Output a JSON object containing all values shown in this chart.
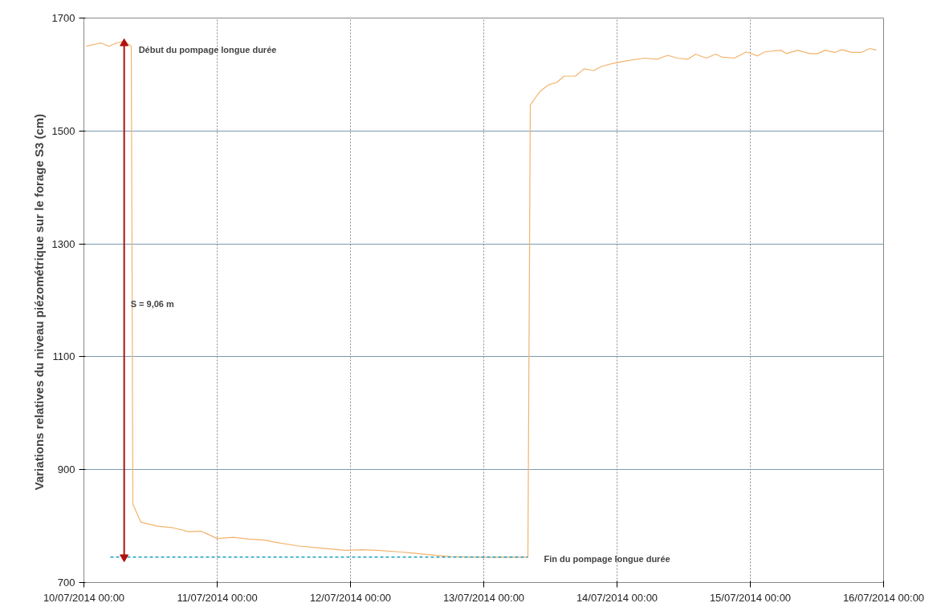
{
  "chart_data": {
    "type": "line",
    "ylabel": "Variations relatives du niveau piézométrique sur le forage  S3 (cm)",
    "xlim": [
      "2014-07-10",
      "2014-07-16"
    ],
    "xticks": [
      {
        "value": "2014-07-10",
        "label": "10/07/2014 00:00"
      },
      {
        "value": "2014-07-11",
        "label": "11/07/2014 00:00"
      },
      {
        "value": "2014-07-12",
        "label": "12/07/2014 00:00"
      },
      {
        "value": "2014-07-13",
        "label": "13/07/2014 00:00"
      },
      {
        "value": "2014-07-14",
        "label": "14/07/2014 00:00"
      },
      {
        "value": "2014-07-15",
        "label": "15/07/2014 00:00"
      },
      {
        "value": "2014-07-16",
        "label": "16/07/2014 00:00"
      }
    ],
    "ylim": [
      700,
      1700
    ],
    "yticks": [
      700,
      900,
      1100,
      1300,
      1500,
      1700
    ],
    "grid": true,
    "series": [
      {
        "color": "#f2b36b",
        "line_style": "solid",
        "x": [
          "2014-07-10T00:26",
          "2014-07-10T03:02",
          "2014-07-10T04:29",
          "2014-07-10T05:56",
          "2014-07-10T07:22",
          "2014-07-10T08:06",
          "2014-07-10T08:32",
          "2014-07-10T08:49",
          "2014-07-10T10:16",
          "2014-07-10T13:09",
          "2014-07-10T16:03",
          "2014-07-10T18:56",
          "2014-07-10T21:07",
          "2014-07-11T00:00",
          "2014-07-11T02:53",
          "2014-07-11T05:47",
          "2014-07-11T08:41",
          "2014-07-11T10:07",
          "2014-07-11T14:28",
          "2014-07-11T18:48",
          "2014-07-11T23:08",
          "2014-07-12T02:01",
          "2014-07-12T04:55",
          "2014-07-12T09:15",
          "2014-07-12T13:35",
          "2014-07-12T17:56",
          "2014-07-12T23:43",
          "2014-07-13T05:29",
          "2014-07-13T07:57",
          "2014-07-13T08:23",
          "2014-07-13T10:07",
          "2014-07-13T11:43",
          "2014-07-13T13:09",
          "2014-07-13T14:28",
          "2014-07-13T16:29",
          "2014-07-13T18:04",
          "2014-07-13T19:49",
          "2014-07-13T21:07",
          "2014-07-13T23:25",
          "2014-07-14T01:01",
          "2014-07-14T04:55",
          "2014-07-14T07:14",
          "2014-07-14T09:07",
          "2014-07-14T10:51",
          "2014-07-14T12:43",
          "2014-07-14T14:10",
          "2014-07-14T16:03",
          "2014-07-14T17:47",
          "2014-07-14T18:48",
          "2014-07-14T21:07",
          "2014-07-14T23:17",
          "2014-07-15T01:18",
          "2014-07-15T02:36",
          "2014-07-15T05:29",
          "2014-07-15T06:30",
          "2014-07-15T08:32",
          "2014-07-15T10:42",
          "2014-07-15T12:09",
          "2014-07-15T13:27",
          "2014-07-15T15:11",
          "2014-07-15T16:29",
          "2014-07-15T18:13",
          "2014-07-15T19:57",
          "2014-07-15T21:32",
          "2014-07-15T22:42"
        ],
        "values": [
          1650,
          1656,
          1650,
          1656,
          1659,
          1653,
          1650,
          839,
          807,
          800,
          797,
          790,
          791,
          778,
          780,
          777,
          775,
          772,
          765,
          761,
          757,
          758,
          757,
          754,
          750,
          746,
          745,
          745,
          745,
          1546,
          1570,
          1582,
          1586,
          1597,
          1597,
          1610,
          1607,
          1614,
          1620,
          1623,
          1629,
          1627,
          1634,
          1629,
          1627,
          1636,
          1629,
          1636,
          1631,
          1629,
          1640,
          1633,
          1640,
          1643,
          1637,
          1643,
          1637,
          1637,
          1643,
          1639,
          1644,
          1639,
          1639,
          1646,
          1643
        ]
      },
      {
        "color": "#1f9fc0",
        "line_style": "dashed",
        "x": [
          "2014-07-10T04:46",
          "2014-07-13T07:57"
        ],
        "values": [
          745,
          745
        ]
      },
      {
        "color": "#b01010",
        "line_style": "solid",
        "marker": "triangle",
        "x": [
          "2014-07-10T07:15",
          "2014-07-10T07:15"
        ],
        "values": [
          745,
          1655
        ]
      }
    ],
    "annotations": [
      {
        "text": "Début du pompage longue durée",
        "x": "2014-07-10T07:15",
        "y": 1655
      },
      "S = 9,06 m",
      {
        "text": "Fin du pompage longue durée",
        "x": "2014-07-13T08:15",
        "y": 745
      }
    ]
  }
}
